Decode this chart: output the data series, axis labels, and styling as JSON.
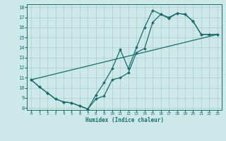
{
  "xlabel": "Humidex (Indice chaleur)",
  "xlim": [
    -0.5,
    23.5
  ],
  "ylim": [
    7.8,
    18.3
  ],
  "xticks": [
    0,
    1,
    2,
    3,
    4,
    5,
    6,
    7,
    8,
    9,
    10,
    11,
    12,
    13,
    14,
    15,
    16,
    17,
    18,
    19,
    20,
    21,
    22,
    23
  ],
  "yticks": [
    8,
    9,
    10,
    11,
    12,
    13,
    14,
    15,
    16,
    17,
    18
  ],
  "bg_color": "#cce8e8",
  "grid_color": "#aacccc",
  "line_color": "#1a6b6b",
  "line1_x": [
    0,
    1,
    2,
    3,
    4,
    5,
    6,
    7,
    8,
    9,
    10,
    11,
    12,
    13,
    14,
    15,
    16,
    17,
    18,
    19,
    20,
    21,
    22,
    23
  ],
  "line1_y": [
    10.8,
    10.1,
    9.5,
    8.9,
    8.6,
    8.5,
    8.2,
    7.9,
    9.3,
    10.5,
    11.9,
    13.8,
    11.9,
    14.0,
    16.0,
    17.7,
    17.3,
    16.9,
    17.4,
    17.3,
    16.6,
    15.3,
    15.3,
    15.3
  ],
  "line2_x": [
    0,
    1,
    2,
    3,
    4,
    5,
    6,
    7,
    8,
    9,
    10,
    11,
    12,
    13,
    14,
    15,
    16,
    17,
    18,
    19,
    20,
    21,
    22,
    23
  ],
  "line2_y": [
    10.8,
    10.1,
    9.5,
    8.9,
    8.6,
    8.5,
    8.2,
    7.9,
    8.9,
    9.2,
    10.8,
    11.0,
    11.5,
    13.5,
    13.9,
    16.5,
    17.3,
    17.0,
    17.4,
    17.3,
    16.6,
    15.3,
    15.3,
    15.3
  ],
  "line3_x": [
    0,
    23
  ],
  "line3_y": [
    10.8,
    15.3
  ]
}
